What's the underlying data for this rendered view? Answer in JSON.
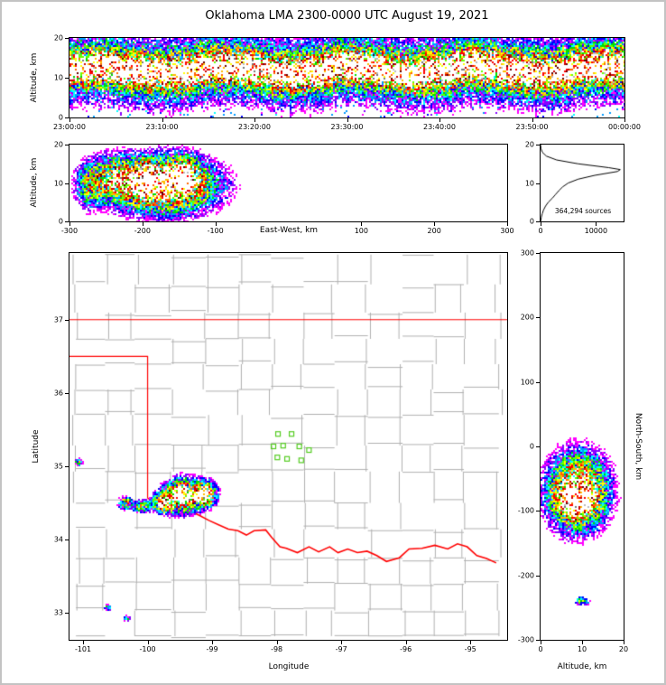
{
  "title": "Oklahoma LMA 2300-0000 UTC August 19, 2021",
  "colors": {
    "border": "#ff0000",
    "county": "#b0b0b0",
    "station": "#55cc22",
    "frame_gray": "#c3c3c3",
    "density_scale": [
      "#ff00ff",
      "#8800ff",
      "#0000ff",
      "#0099ff",
      "#00ffff",
      "#00dd00",
      "#66ff00",
      "#ffff00",
      "#ffbb00",
      "#ff6600",
      "#ff0000",
      "#cc0000",
      "#660000",
      "#777777",
      "#bbbbbb",
      "#ffffff"
    ]
  },
  "chart_data": [
    {
      "id": "time_altitude",
      "type": "heatmap",
      "ylabel": "Altitude, km",
      "xticks": [
        "23:00:00",
        "23:10:00",
        "23:20:00",
        "23:30:00",
        "23:40:00",
        "23:50:00",
        "00:00:00"
      ],
      "xtick_values": [
        0,
        10,
        20,
        30,
        40,
        50,
        60
      ],
      "yticks": [
        "0",
        "10",
        "20"
      ],
      "ytick_values": [
        0,
        10,
        20
      ],
      "xlim": [
        0,
        60
      ],
      "ylim": [
        0,
        20
      ],
      "band": {
        "center_km": 12,
        "core_sigma_km": 2.2,
        "wide_sigma_km": 5.0,
        "wide_weight": 0.45,
        "low_scatter_max_km": 6
      }
    },
    {
      "id": "east_west_altitude",
      "type": "heatmap",
      "xlabel": "East-West, km",
      "ylabel": "Altitude, km",
      "xticks": [
        "-300",
        "-200",
        "-100",
        "100",
        "200",
        "300"
      ],
      "xtick_values": [
        -300,
        -200,
        -100,
        100,
        200,
        300
      ],
      "yticks": [
        "0",
        "10",
        "20"
      ],
      "ytick_values": [
        0,
        10,
        20
      ],
      "xlim": [
        -300,
        300
      ],
      "ylim": [
        0,
        20
      ],
      "blobs": [
        {
          "x": -170,
          "y": 9.5,
          "sx": 42,
          "sy": 4.2,
          "i": 1.0
        },
        {
          "x": -240,
          "y": 11,
          "sx": 22,
          "sy": 3.5,
          "i": 0.55
        },
        {
          "x": -275,
          "y": 9,
          "sx": 10,
          "sy": 3.5,
          "i": 0.3
        },
        {
          "x": -195,
          "y": 11,
          "sx": 12,
          "sy": 2.5,
          "i": 0.85
        },
        {
          "x": -143,
          "y": 11.5,
          "sx": 13,
          "sy": 2.8,
          "i": 0.85
        }
      ]
    },
    {
      "id": "altitude_histogram",
      "type": "line",
      "annotation": "364,294 sources",
      "xticks": [
        "0",
        "10000"
      ],
      "xtick_values": [
        0,
        10000
      ],
      "yticks": [
        "0",
        "10",
        "20"
      ],
      "ytick_values": [
        0,
        10,
        20
      ],
      "xlim": [
        0,
        15000
      ],
      "ylim": [
        0,
        20
      ],
      "altitudes_km": [
        0,
        1,
        2,
        3,
        4,
        5,
        6,
        7,
        8,
        9,
        10,
        11,
        12,
        13,
        13.5,
        14,
        15,
        16,
        17,
        18,
        19,
        20
      ],
      "source_counts": [
        30,
        120,
        300,
        550,
        900,
        1400,
        2100,
        2700,
        3300,
        4000,
        5000,
        6800,
        9800,
        13900,
        14400,
        12300,
        6800,
        2900,
        1050,
        320,
        70,
        0
      ]
    },
    {
      "id": "plan_view",
      "type": "heatmap",
      "subtype": "map",
      "xlabel": "Longitude",
      "ylabel": "Latitude",
      "xticks": [
        "-101",
        "-100",
        "-99",
        "-98",
        "-97",
        "-96",
        "-95"
      ],
      "xtick_values": [
        -101,
        -100,
        -99,
        -98,
        -97,
        -96,
        -95
      ],
      "yticks": [
        "33",
        "34",
        "35",
        "36",
        "37"
      ],
      "ytick_values": [
        33,
        34,
        35,
        36,
        37
      ],
      "xlim": [
        -101.21,
        -94.43
      ],
      "ylim": [
        32.63,
        37.91
      ],
      "county_grid": {
        "lon_step_deg": 0.5,
        "lat_step_deg": 0.37
      },
      "state_lines": {
        "kansas_border_lat": 37.0,
        "panhandle_lat": 36.5,
        "panhandle_lon": -100.0,
        "panhandle_lon_south_lat": 34.56
      },
      "red_river": [
        [
          -100.0,
          34.56
        ],
        [
          -99.93,
          34.54
        ],
        [
          -99.84,
          34.5
        ],
        [
          -99.72,
          34.44
        ],
        [
          -99.6,
          34.41
        ],
        [
          -99.45,
          34.4
        ],
        [
          -99.3,
          34.37
        ],
        [
          -99.2,
          34.33
        ],
        [
          -99.05,
          34.26
        ],
        [
          -98.9,
          34.2
        ],
        [
          -98.75,
          34.14
        ],
        [
          -98.6,
          34.12
        ],
        [
          -98.47,
          34.06
        ],
        [
          -98.35,
          34.12
        ],
        [
          -98.17,
          34.13
        ],
        [
          -98.08,
          34.03
        ],
        [
          -97.95,
          33.9
        ],
        [
          -97.85,
          33.88
        ],
        [
          -97.68,
          33.82
        ],
        [
          -97.5,
          33.9
        ],
        [
          -97.35,
          33.83
        ],
        [
          -97.18,
          33.9
        ],
        [
          -97.05,
          33.82
        ],
        [
          -96.9,
          33.87
        ],
        [
          -96.75,
          33.82
        ],
        [
          -96.6,
          33.84
        ],
        [
          -96.45,
          33.78
        ],
        [
          -96.3,
          33.7
        ],
        [
          -96.1,
          33.75
        ],
        [
          -95.95,
          33.87
        ],
        [
          -95.75,
          33.88
        ],
        [
          -95.55,
          33.92
        ],
        [
          -95.35,
          33.87
        ],
        [
          -95.2,
          33.94
        ],
        [
          -95.05,
          33.9
        ],
        [
          -94.9,
          33.78
        ],
        [
          -94.75,
          33.74
        ],
        [
          -94.6,
          33.68
        ]
      ],
      "stations": [
        [
          -97.98,
          35.44
        ],
        [
          -97.77,
          35.44
        ],
        [
          -98.05,
          35.27
        ],
        [
          -97.9,
          35.28
        ],
        [
          -97.65,
          35.27
        ],
        [
          -97.5,
          35.22
        ],
        [
          -97.99,
          35.12
        ],
        [
          -97.84,
          35.1
        ],
        [
          -97.62,
          35.08
        ]
      ],
      "storms": [
        {
          "x": -99.45,
          "y": 34.6,
          "sx": 0.17,
          "sy": 0.13,
          "i": 1.0
        },
        {
          "x": -99.1,
          "y": 34.62,
          "sx": 0.1,
          "sy": 0.1,
          "i": 0.9
        },
        {
          "x": -99.75,
          "y": 34.5,
          "sx": 0.1,
          "sy": 0.08,
          "i": 0.85
        },
        {
          "x": -99.5,
          "y": 34.62,
          "sx": 0.05,
          "sy": 0.05,
          "i": 0.9
        },
        {
          "x": -99.2,
          "y": 34.6,
          "sx": 0.05,
          "sy": 0.05,
          "i": 0.85
        },
        {
          "x": -100.1,
          "y": 34.45,
          "sx": 0.1,
          "sy": 0.05,
          "i": 0.4
        },
        {
          "x": -100.35,
          "y": 34.5,
          "sx": 0.06,
          "sy": 0.05,
          "i": 0.55
        },
        {
          "x": -101.07,
          "y": 35.05,
          "sx": 0.035,
          "sy": 0.03,
          "i": 0.45
        },
        {
          "x": -100.62,
          "y": 33.07,
          "sx": 0.03,
          "sy": 0.025,
          "i": 0.4
        },
        {
          "x": -100.32,
          "y": 32.92,
          "sx": 0.03,
          "sy": 0.025,
          "i": 0.35
        }
      ]
    },
    {
      "id": "altitude_north_south",
      "type": "heatmap",
      "xlabel": "Altitude, km",
      "ylabel": "North-South, km",
      "xticks": [
        "0",
        "10",
        "20"
      ],
      "xtick_values": [
        0,
        10,
        20
      ],
      "yticks": [
        "-300",
        "-200",
        "-100",
        "0",
        "100",
        "200",
        "300"
      ],
      "ytick_values": [
        -300,
        -200,
        -100,
        0,
        100,
        200,
        300
      ],
      "xlim": [
        0,
        20
      ],
      "ylim": [
        -300,
        300
      ],
      "blobs": [
        {
          "x": 9,
          "y": -70,
          "sx": 4.2,
          "sy": 34,
          "i": 1.0
        },
        {
          "x": 8.5,
          "y": -85,
          "sx": 2.5,
          "sy": 15,
          "i": 0.8
        },
        {
          "x": 10,
          "y": -240,
          "sx": 1.2,
          "sy": 4,
          "i": 0.35
        }
      ]
    }
  ]
}
